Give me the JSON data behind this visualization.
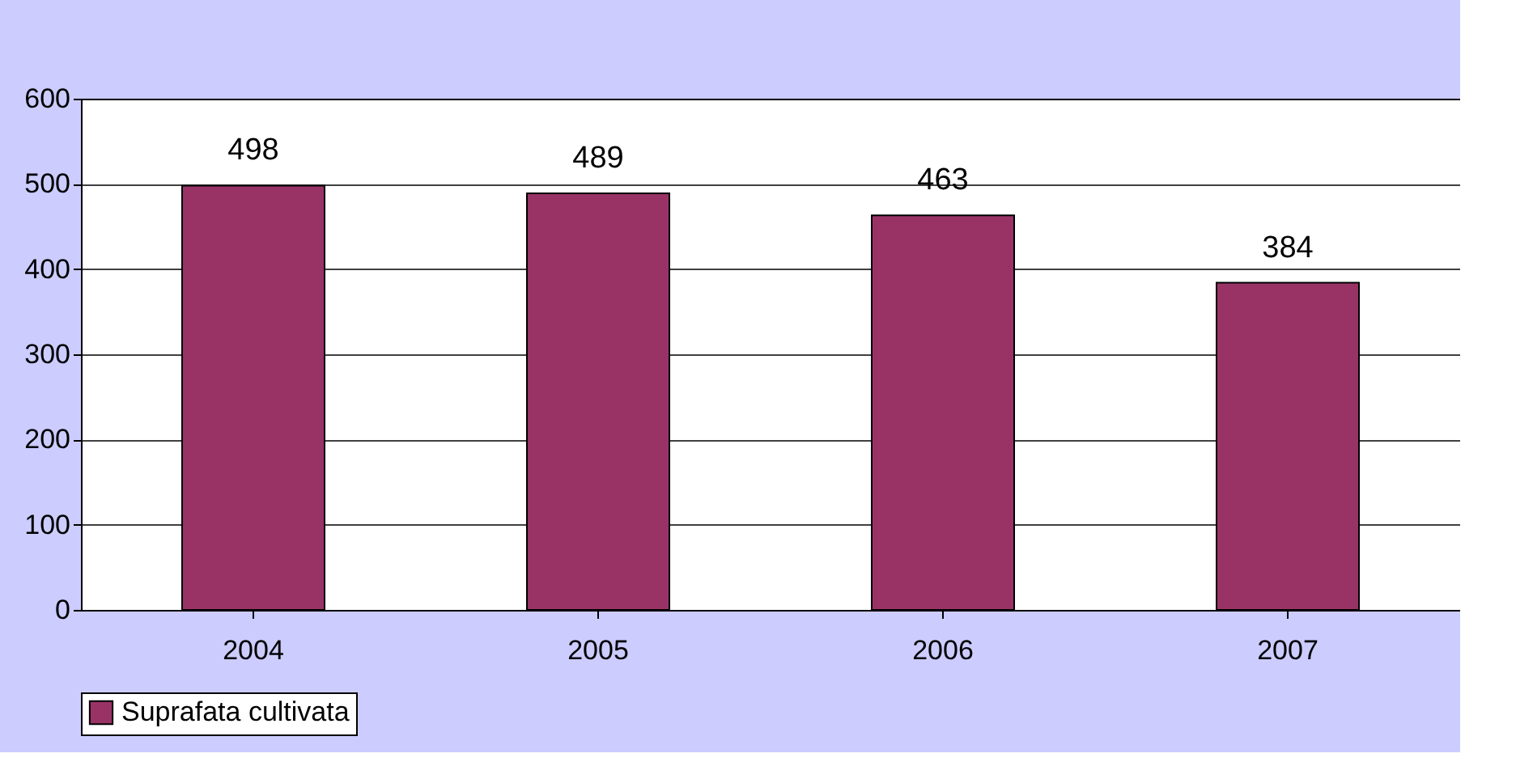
{
  "chart_data": {
    "type": "bar",
    "categories": [
      "2004",
      "2005",
      "2006",
      "2007"
    ],
    "series": [
      {
        "name": "Suprafata cultivata",
        "color": "#993366",
        "values": [
          498,
          489,
          463,
          384
        ]
      }
    ],
    "ylim": [
      0,
      600
    ],
    "yticks": [
      0,
      100,
      200,
      300,
      400,
      500,
      600
    ],
    "grid": "y",
    "legend": "bottom",
    "data_labels": true
  }
}
